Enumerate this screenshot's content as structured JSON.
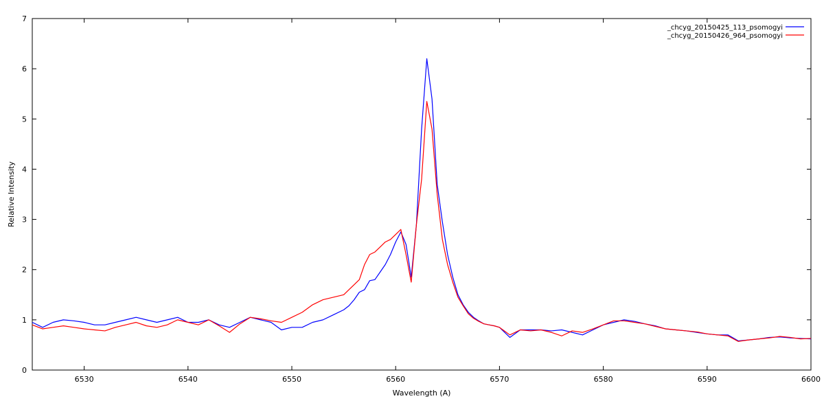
{
  "chart_data": {
    "type": "line",
    "x_label": "Wavelength (A)",
    "y_label": "Relative Intensity",
    "xlim": [
      6525,
      6600
    ],
    "ylim": [
      0,
      7
    ],
    "xticks": [
      6530,
      6540,
      6550,
      6560,
      6570,
      6580,
      6590,
      6600
    ],
    "yticks": [
      0,
      1,
      2,
      3,
      4,
      5,
      6,
      7
    ],
    "grid": false,
    "legend": "top-right",
    "x": [
      6525,
      6526,
      6527,
      6528,
      6529,
      6530,
      6531,
      6532,
      6533,
      6534,
      6535,
      6536,
      6537,
      6538,
      6539,
      6540,
      6541,
      6542,
      6543,
      6544,
      6545,
      6546,
      6547,
      6548,
      6549,
      6550,
      6551,
      6552,
      6553,
      6554,
      6555,
      6555.5,
      6556,
      6556.5,
      6557,
      6557.5,
      6558,
      6558.5,
      6559,
      6559.5,
      6560,
      6560.5,
      6561,
      6561.5,
      6562,
      6562.5,
      6563,
      6563.5,
      6564,
      6564.5,
      6565,
      6565.5,
      6566,
      6566.5,
      6567,
      6567.5,
      6568,
      6568.5,
      6569,
      6569.5,
      6570,
      6571,
      6572,
      6573,
      6574,
      6575,
      6576,
      6577,
      6578,
      6579,
      6580,
      6581,
      6582,
      6583,
      6584,
      6585,
      6586,
      6587,
      6588,
      6589,
      6590,
      6591,
      6592,
      6593,
      6594,
      6595,
      6596,
      6597,
      6598,
      6599,
      6600
    ],
    "series": [
      {
        "name": "_chcyg_20150425_113_psomogyi",
        "color": "#0000ff",
        "values": [
          0.95,
          0.85,
          0.95,
          1.0,
          0.98,
          0.95,
          0.9,
          0.9,
          0.95,
          1.0,
          1.05,
          1.0,
          0.95,
          1.0,
          1.05,
          0.95,
          0.95,
          1.0,
          0.9,
          0.85,
          0.95,
          1.05,
          1.0,
          0.95,
          0.8,
          0.85,
          0.85,
          0.95,
          1.0,
          1.1,
          1.2,
          1.28,
          1.4,
          1.55,
          1.6,
          1.78,
          1.8,
          1.95,
          2.1,
          2.3,
          2.55,
          2.75,
          2.5,
          1.85,
          2.9,
          4.8,
          6.2,
          5.4,
          3.7,
          2.95,
          2.3,
          1.85,
          1.5,
          1.3,
          1.15,
          1.05,
          0.98,
          0.92,
          0.9,
          0.88,
          0.85,
          0.65,
          0.8,
          0.8,
          0.8,
          0.78,
          0.8,
          0.75,
          0.7,
          0.8,
          0.9,
          0.95,
          1.0,
          0.97,
          0.92,
          0.88,
          0.82,
          0.8,
          0.78,
          0.75,
          0.72,
          0.7,
          0.7,
          0.58,
          0.6,
          0.62,
          0.65,
          0.66,
          0.64,
          0.63,
          0.62
        ]
      },
      {
        "name": "_chcyg_20150426_964_psomogyi",
        "color": "#ff0000",
        "values": [
          0.9,
          0.82,
          0.85,
          0.88,
          0.85,
          0.82,
          0.8,
          0.78,
          0.85,
          0.9,
          0.95,
          0.88,
          0.85,
          0.9,
          1.0,
          0.95,
          0.9,
          1.0,
          0.88,
          0.75,
          0.92,
          1.05,
          1.02,
          0.98,
          0.95,
          1.05,
          1.15,
          1.3,
          1.4,
          1.45,
          1.5,
          1.6,
          1.7,
          1.8,
          2.1,
          2.3,
          2.35,
          2.45,
          2.55,
          2.6,
          2.7,
          2.8,
          2.3,
          1.75,
          2.9,
          3.8,
          5.35,
          4.8,
          3.5,
          2.6,
          2.1,
          1.75,
          1.45,
          1.28,
          1.12,
          1.03,
          0.97,
          0.92,
          0.9,
          0.88,
          0.85,
          0.7,
          0.8,
          0.78,
          0.8,
          0.75,
          0.68,
          0.78,
          0.75,
          0.82,
          0.9,
          0.98,
          0.98,
          0.95,
          0.92,
          0.87,
          0.82,
          0.8,
          0.78,
          0.76,
          0.72,
          0.7,
          0.68,
          0.57,
          0.6,
          0.62,
          0.64,
          0.67,
          0.65,
          0.62,
          0.63
        ]
      }
    ]
  }
}
